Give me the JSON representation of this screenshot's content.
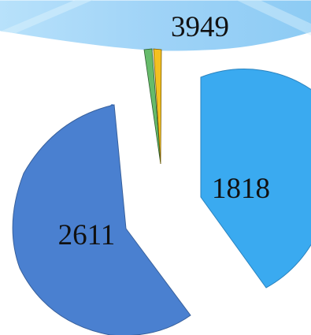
{
  "chart_data": {
    "type": "pie",
    "title": "",
    "slices": [
      {
        "label": "3949",
        "value": 3949,
        "color": "#9fd3f7"
      },
      {
        "label": "1818",
        "value": 1818,
        "color": "#3aaaf0"
      },
      {
        "label": "2611",
        "value": 2611,
        "color": "#4a80d0"
      },
      {
        "label": "",
        "value": 60,
        "color": "#66bb6a"
      },
      {
        "label": "",
        "value": 60,
        "color": "#f4c020"
      }
    ],
    "legend": "none",
    "style": "exploded 3D pie"
  }
}
